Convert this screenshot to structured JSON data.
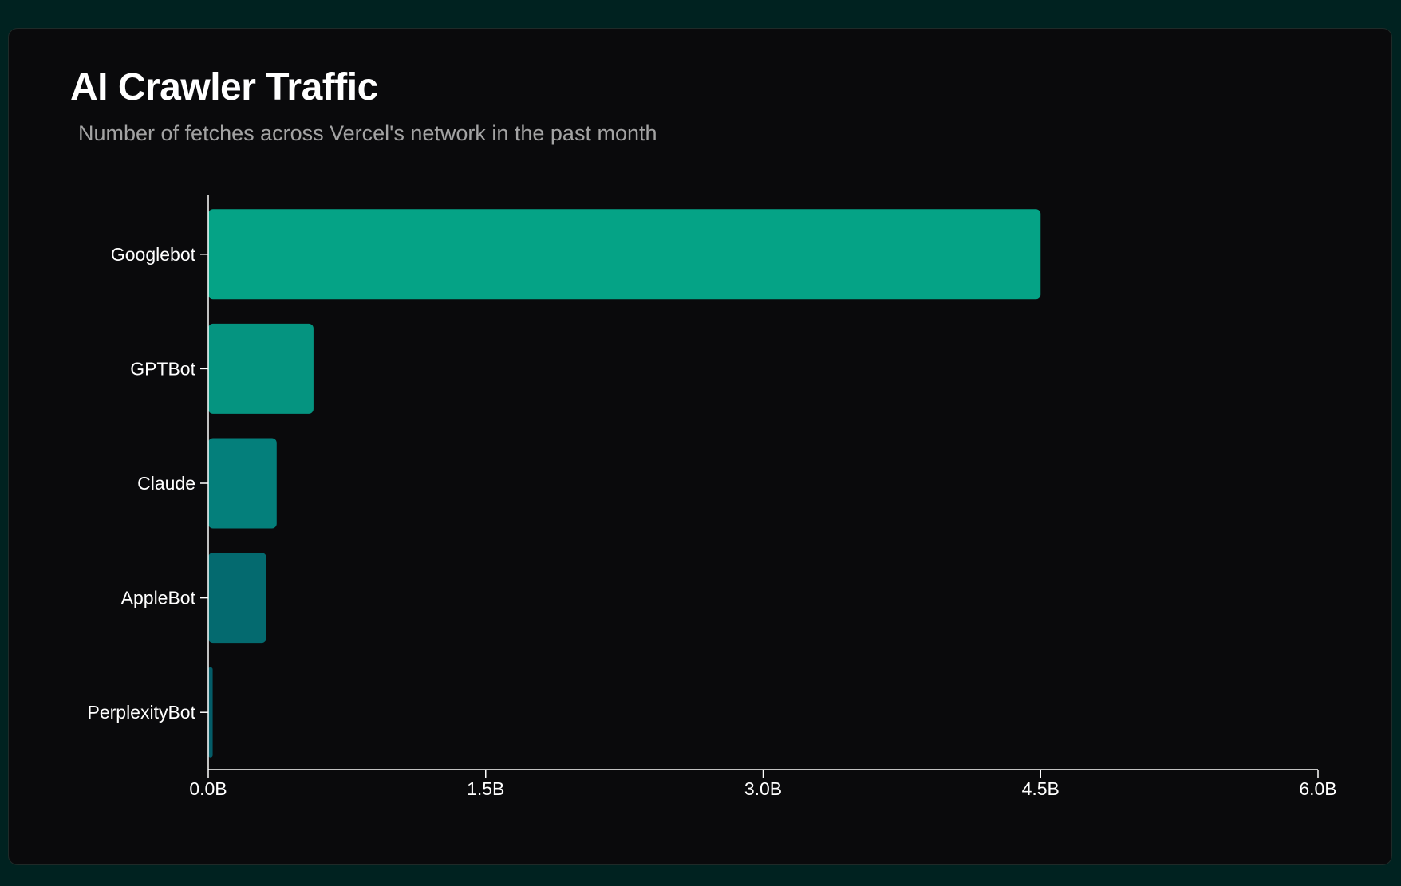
{
  "chart_data": {
    "type": "bar",
    "orientation": "horizontal",
    "title": "AI Crawler Traffic",
    "subtitle": "Number of fetches across Vercel's network in the past month",
    "xlabel": "",
    "ylabel": "",
    "unit": "B",
    "categories": [
      "Googlebot",
      "GPTBot",
      "Claude",
      "AppleBot",
      "PerplexityBot"
    ],
    "values": [
      4.5,
      0.569,
      0.37,
      0.314,
      0.024
    ],
    "xlim": [
      0,
      6
    ],
    "xticks": [
      "0.0B",
      "1.5B",
      "3.0B",
      "4.5B",
      "6.0B"
    ],
    "xtick_values": [
      0,
      1.5,
      3,
      4.5,
      6
    ],
    "colors": [
      "#05a386",
      "#059480",
      "#047f7b",
      "#046a6f",
      "#045c68"
    ],
    "grid": false
  }
}
